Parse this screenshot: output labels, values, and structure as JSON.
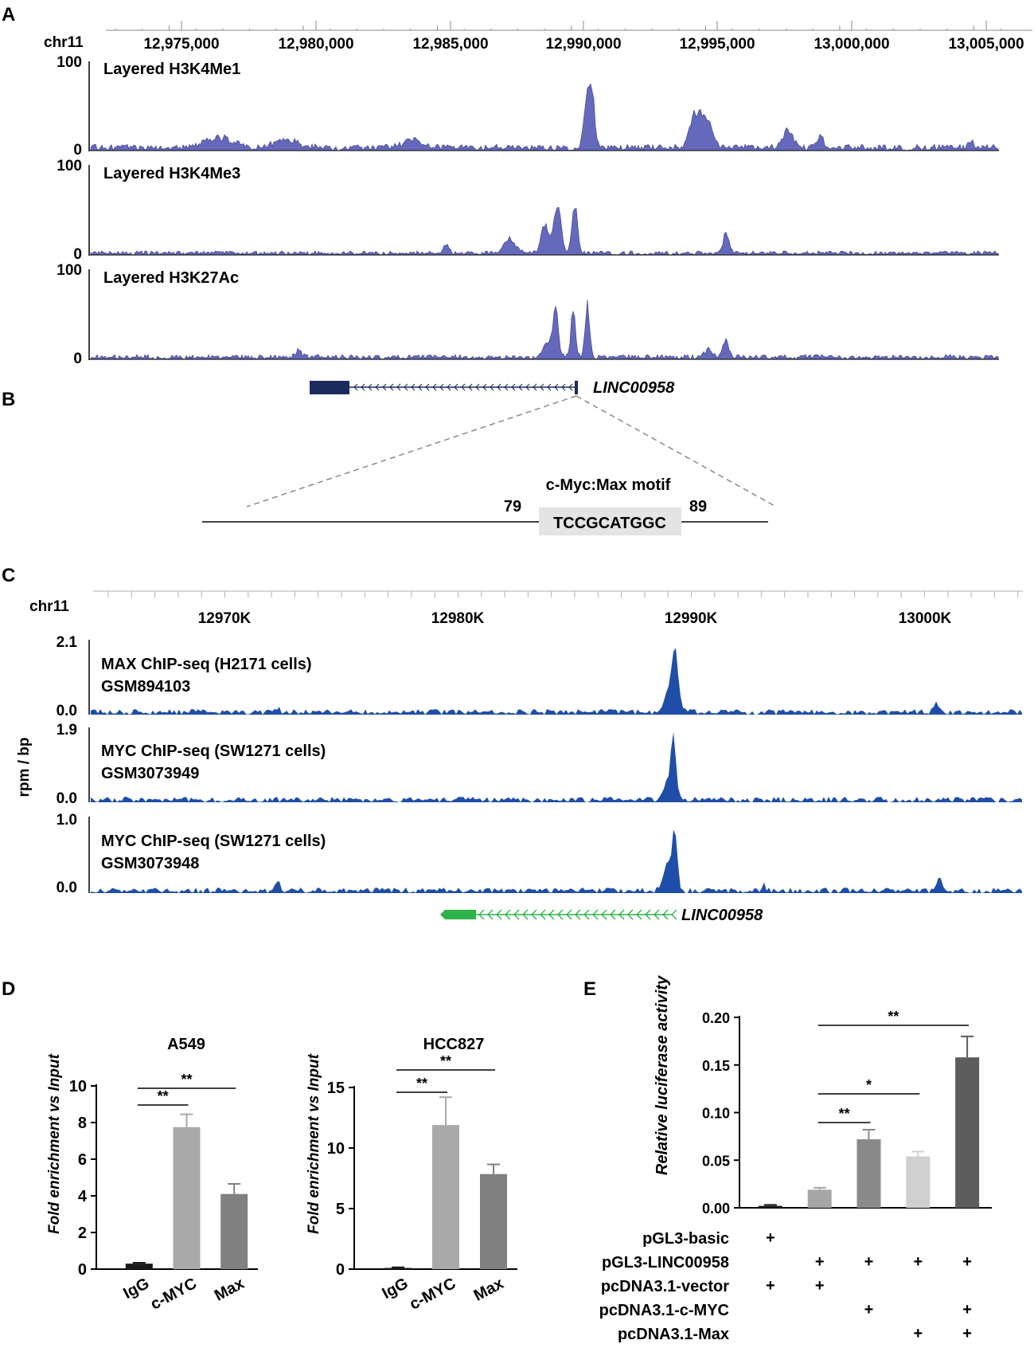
{
  "colors": {
    "histone_fill": "#4a4fb0",
    "chip_fill": "#1f4ea8",
    "gene_dark": "#1d2a5c",
    "gene_green": "#2db34a",
    "motif_box": "#e4e4e4",
    "bar_black": "#1a1a1a",
    "bar_grey1": "#a9a9a9",
    "bar_grey2": "#808080",
    "bar_e1": "#a6a6a6",
    "bar_e2": "#8a8a8a",
    "bar_e3": "#d0d0d0",
    "bar_e4": "#5c5c5c"
  },
  "panel_labels": {
    "a": "A",
    "b": "B",
    "c": "C",
    "d": "D",
    "e": "E"
  },
  "panel_a": {
    "chrom": "chr11",
    "ticks": [
      "12,975,000",
      "12,980,000",
      "12,985,000",
      "12,990,000",
      "12,995,000",
      "13,000,000",
      "13,005,000"
    ],
    "tracks": [
      {
        "title": "Layered H3K4Me1",
        "ymax": "100",
        "ymin": "0"
      },
      {
        "title": "Layered H3K4Me3",
        "ymax": "100",
        "ymin": "0"
      },
      {
        "title": "Layered H3K27Ac",
        "ymax": "100",
        "ymin": "0"
      }
    ],
    "gene": "LINC00958"
  },
  "panel_b": {
    "motif_title": "c-Myc:Max motif",
    "sequence": "TCCGCATGGC",
    "start": "79",
    "end": "89"
  },
  "panel_c": {
    "chrom": "chr11",
    "ticks": [
      "12970K",
      "12980K",
      "12990K",
      "13000K"
    ],
    "ylabel": "rpm / bp",
    "tracks": [
      {
        "line1": "MAX ChIP-seq (H2171 cells)",
        "line2": "GSM894103",
        "ymax": "2.1",
        "ymin": "0.0"
      },
      {
        "line1": "MYC ChIP-seq (SW1271 cells)",
        "line2": "GSM3073949",
        "ymax": "1.9",
        "ymin": "0.0"
      },
      {
        "line1": "MYC ChIP-seq (SW1271 cells)",
        "line2": "GSM3073948",
        "ymax": "1.0",
        "ymin": "0.0"
      }
    ],
    "gene": "LINC00958"
  },
  "chart_data": [
    {
      "type": "bar",
      "title": "A549",
      "categories": [
        "IgG",
        "c-MYC",
        "Max"
      ],
      "values": [
        0.3,
        7.75,
        4.1
      ],
      "errors": [
        0.05,
        0.7,
        0.55
      ],
      "ylabel": "Fold enrichment vs Input",
      "ylim": [
        0,
        10
      ],
      "yticks": [
        "0",
        "2",
        "4",
        "6",
        "8",
        "10"
      ],
      "significance": [
        {
          "from": "IgG",
          "to": "c-MYC",
          "label": "**"
        },
        {
          "from": "IgG",
          "to": "Max",
          "label": "**"
        }
      ]
    },
    {
      "type": "bar",
      "title": "HCC827",
      "categories": [
        "IgG",
        "c-MYC",
        "Max"
      ],
      "values": [
        0.1,
        11.9,
        7.85
      ],
      "errors": [
        0.05,
        2.3,
        0.8
      ],
      "ylabel": "Fold enrichment vs Input",
      "ylim": [
        0,
        15
      ],
      "yticks": [
        "0",
        "5",
        "10",
        "15"
      ],
      "significance": [
        {
          "from": "IgG",
          "to": "c-MYC",
          "label": "**"
        },
        {
          "from": "IgG",
          "to": "Max",
          "label": "**"
        }
      ]
    },
    {
      "type": "bar",
      "title": "",
      "categories": [
        "1",
        "2",
        "3",
        "4",
        "5"
      ],
      "values": [
        0.002,
        0.019,
        0.072,
        0.054,
        0.158
      ],
      "errors": [
        0.001,
        0.002,
        0.01,
        0.005,
        0.022
      ],
      "ylabel": "Relative luciferase activity",
      "ylim": [
        0,
        0.2
      ],
      "yticks": [
        "0.00",
        "0.05",
        "0.10",
        "0.15",
        "0.20"
      ],
      "significance": [
        {
          "from": "2",
          "to": "3",
          "label": "**"
        },
        {
          "from": "2",
          "to": "4",
          "label": "*"
        },
        {
          "from": "2",
          "to": "5",
          "label": "**"
        }
      ],
      "conditions": [
        {
          "name": "pGL3-basic",
          "marks": [
            "+",
            "",
            "",
            "",
            ""
          ]
        },
        {
          "name": "pGL3-LINC00958",
          "marks": [
            "",
            "+",
            "+",
            "+",
            "+"
          ]
        },
        {
          "name": "pcDNA3.1-vector",
          "marks": [
            "+",
            "+",
            "",
            "",
            ""
          ]
        },
        {
          "name": "pcDNA3.1-c-MYC",
          "marks": [
            "",
            "",
            "+",
            "",
            "+"
          ]
        },
        {
          "name": "pcDNA3.1-Max",
          "marks": [
            "",
            "",
            "",
            "+",
            "+"
          ]
        }
      ]
    }
  ]
}
